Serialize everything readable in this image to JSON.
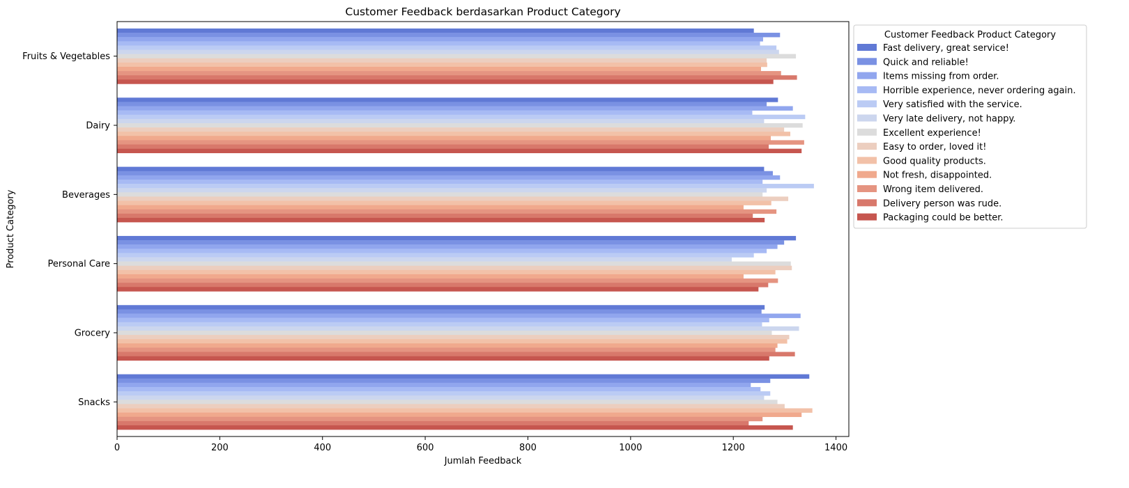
{
  "chart_data": {
    "type": "bar",
    "orientation": "horizontal",
    "title": "Customer Feedback berdasarkan Product Category",
    "xlabel": "Jumlah Feedback",
    "ylabel": "Product Category",
    "xlim": [
      0,
      1425
    ],
    "xticks": [
      0,
      200,
      400,
      600,
      800,
      1000,
      1200,
      1400
    ],
    "grid": false,
    "legend_title": "Customer Feedback Product Category",
    "legend_position": "upper-left-outside",
    "categories": [
      "Fruits & Vegetables",
      "Dairy",
      "Beverages",
      "Personal Care",
      "Grocery",
      "Snacks"
    ],
    "series": [
      {
        "name": "Fast delivery, great service!",
        "color": "#6079d5",
        "values": [
          1240,
          1287,
          1260,
          1322,
          1261,
          1348
        ]
      },
      {
        "name": "Quick and reliable!",
        "color": "#7a91e3",
        "values": [
          1291,
          1265,
          1277,
          1299,
          1255,
          1272
        ]
      },
      {
        "name": "Items missing from order.",
        "color": "#91a6ee",
        "values": [
          1258,
          1316,
          1291,
          1286,
          1331,
          1234
        ]
      },
      {
        "name": "Horrible experience, never ordering again.",
        "color": "#a7baf4",
        "values": [
          1252,
          1237,
          1257,
          1265,
          1270,
          1253
        ]
      },
      {
        "name": "Very satisfied with the service.",
        "color": "#bbcbf4",
        "values": [
          1284,
          1340,
          1357,
          1240,
          1256,
          1272
        ]
      },
      {
        "name": "Very late delivery, not happy.",
        "color": "#ccd6ee",
        "values": [
          1289,
          1260,
          1265,
          1197,
          1328,
          1260
        ]
      },
      {
        "name": "Excellent experience!",
        "color": "#dcdcdc",
        "values": [
          1322,
          1335,
          1257,
          1312,
          1275,
          1286
        ]
      },
      {
        "name": "Easy to order, loved it!",
        "color": "#eccebf",
        "values": [
          1265,
          1299,
          1307,
          1314,
          1309,
          1300
        ]
      },
      {
        "name": "Good quality products.",
        "color": "#f2c1a8",
        "values": [
          1266,
          1311,
          1274,
          1282,
          1305,
          1354
        ]
      },
      {
        "name": "Not fresh, disappointed.",
        "color": "#f0a98d",
        "values": [
          1254,
          1273,
          1220,
          1220,
          1286,
          1333
        ]
      },
      {
        "name": "Wrong item delivered.",
        "color": "#e59481",
        "values": [
          1293,
          1338,
          1284,
          1287,
          1282,
          1257
        ]
      },
      {
        "name": "Delivery person was rude.",
        "color": "#d8786b",
        "values": [
          1324,
          1269,
          1238,
          1268,
          1320,
          1230
        ]
      },
      {
        "name": "Packaging could be better.",
        "color": "#c6564f",
        "values": [
          1278,
          1333,
          1261,
          1249,
          1270,
          1316
        ]
      }
    ]
  }
}
